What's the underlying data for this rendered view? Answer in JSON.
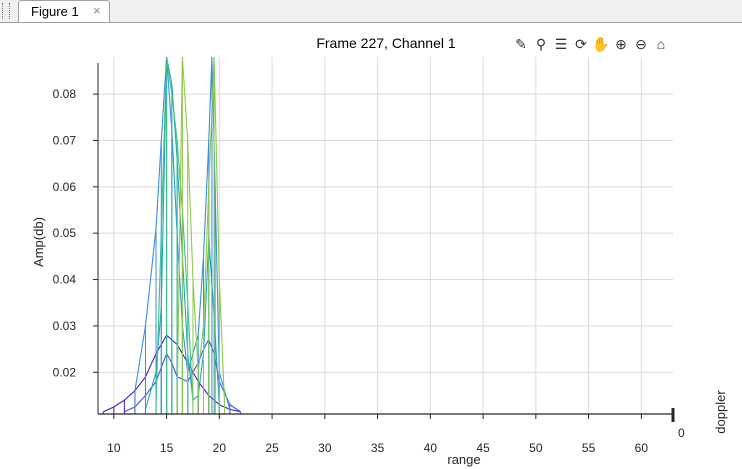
{
  "window": {
    "tab_label": "Figure 1",
    "close_glyph": "×"
  },
  "toolbar": {
    "tools": [
      {
        "name": "brush-icon",
        "glyph": "✎"
      },
      {
        "name": "data-cursor-icon",
        "glyph": "⚲"
      },
      {
        "name": "legend-icon",
        "glyph": "☰"
      },
      {
        "name": "rotate-icon",
        "glyph": "⟳"
      },
      {
        "name": "pan-icon",
        "glyph": "✋"
      },
      {
        "name": "zoom-in-icon",
        "glyph": "⊕"
      },
      {
        "name": "zoom-out-icon",
        "glyph": "⊖"
      },
      {
        "name": "home-icon",
        "glyph": "⌂"
      }
    ]
  },
  "colors": {
    "series_colors": [
      "#3e1ec4",
      "#4055e0",
      "#3b8ee0",
      "#1fa6bf",
      "#3fbf8a",
      "#8cc94e"
    ],
    "grid": "#dcdcdc",
    "axis": "#262626"
  },
  "chart_data": {
    "type": "line",
    "title": "Frame 227, Channel 1",
    "xlabel": "range",
    "ylabel": "Amp(db)",
    "zlabel": "doppler",
    "xlim": [
      8.5,
      63
    ],
    "ylim": [
      0.011,
      0.088
    ],
    "xticks": [
      10,
      15,
      20,
      25,
      30,
      35,
      40,
      45,
      50,
      55,
      60
    ],
    "yticks": [
      0.02,
      0.03,
      0.04,
      0.05,
      0.06,
      0.07,
      0.08
    ],
    "zticks": [
      "0"
    ],
    "grid": true,
    "series": [
      {
        "x": [
          9,
          10,
          11,
          12,
          13,
          14,
          15,
          16,
          17,
          18,
          19,
          20,
          21,
          22
        ],
        "y": [
          0.0115,
          0.0125,
          0.014,
          0.016,
          0.019,
          0.024,
          0.028,
          0.026,
          0.022,
          0.018,
          0.015,
          0.013,
          0.012,
          0.0115
        ]
      },
      {
        "x": [
          11,
          12,
          13,
          14,
          14.5,
          15,
          15.5,
          16,
          17,
          18,
          18.5,
          19,
          19.5,
          20,
          21,
          22
        ],
        "y": [
          0.0115,
          0.0125,
          0.015,
          0.018,
          0.021,
          0.024,
          0.022,
          0.019,
          0.018,
          0.022,
          0.025,
          0.027,
          0.024,
          0.018,
          0.013,
          0.0115
        ]
      },
      {
        "x": [
          12,
          13,
          14,
          14.5,
          15,
          15.5,
          16,
          16.5,
          17,
          18,
          18.5,
          19,
          19.3,
          19.6,
          20,
          21
        ],
        "y": [
          0.016,
          0.03,
          0.051,
          0.07,
          0.088,
          0.072,
          0.05,
          0.03,
          0.02,
          0.028,
          0.045,
          0.07,
          0.088,
          0.06,
          0.02,
          0.012
        ]
      },
      {
        "x": [
          13,
          14,
          14.5,
          15,
          15.5,
          16,
          16.5,
          17,
          17.5,
          18,
          18.5,
          19,
          19.5,
          20
        ],
        "y": [
          0.012,
          0.02,
          0.034,
          0.088,
          0.082,
          0.066,
          0.045,
          0.024,
          0.014,
          0.015,
          0.024,
          0.049,
          0.032,
          0.013
        ]
      },
      {
        "x": [
          14,
          15,
          15.5,
          16,
          16.5,
          17,
          17.5
        ],
        "y": [
          0.013,
          0.088,
          0.08,
          0.07,
          0.055,
          0.035,
          0.013
        ]
      },
      {
        "x": [
          16,
          16.5,
          17,
          17.5,
          18,
          18.5,
          19,
          19.5,
          20,
          20.5
        ],
        "y": [
          0.013,
          0.088,
          0.07,
          0.04,
          0.02,
          0.03,
          0.06,
          0.088,
          0.04,
          0.013
        ]
      }
    ]
  }
}
